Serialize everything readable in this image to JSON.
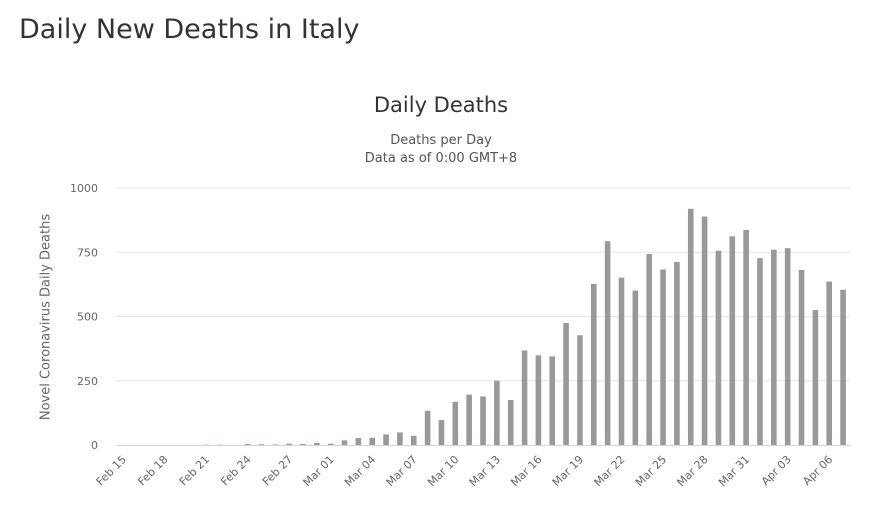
{
  "page": {
    "title": "Daily New Deaths in Italy"
  },
  "chart_data": {
    "type": "bar",
    "title": "Daily Deaths",
    "subtitle_lines": [
      "Deaths per Day",
      "Data as of 0:00 GMT+8"
    ],
    "xlabel": "",
    "ylabel": "Novel Coronavirus Daily Deaths",
    "ylim": [
      0,
      1000
    ],
    "yticks": [
      0,
      250,
      500,
      750,
      1000
    ],
    "grid": true,
    "legend": "none",
    "bar_color": "#999999",
    "categories": [
      "Feb 15",
      "Feb 16",
      "Feb 17",
      "Feb 18",
      "Feb 19",
      "Feb 20",
      "Feb 21",
      "Feb 22",
      "Feb 23",
      "Feb 24",
      "Feb 25",
      "Feb 26",
      "Feb 27",
      "Feb 28",
      "Feb 29",
      "Mar 01",
      "Mar 02",
      "Mar 03",
      "Mar 04",
      "Mar 05",
      "Mar 06",
      "Mar 07",
      "Mar 08",
      "Mar 09",
      "Mar 10",
      "Mar 11",
      "Mar 12",
      "Mar 13",
      "Mar 14",
      "Mar 15",
      "Mar 16",
      "Mar 17",
      "Mar 18",
      "Mar 19",
      "Mar 20",
      "Mar 21",
      "Mar 22",
      "Mar 23",
      "Mar 24",
      "Mar 25",
      "Mar 26",
      "Mar 27",
      "Mar 28",
      "Mar 29",
      "Mar 30",
      "Mar 31",
      "Apr 01",
      "Apr 02",
      "Apr 03",
      "Apr 04",
      "Apr 05",
      "Apr 06",
      "Apr 07"
    ],
    "xtick_labels": [
      "Feb 15",
      "Feb 18",
      "Feb 21",
      "Feb 24",
      "Feb 27",
      "Mar 01",
      "Mar 04",
      "Mar 07",
      "Mar 10",
      "Mar 13",
      "Mar 16",
      "Mar 19",
      "Mar 22",
      "Mar 25",
      "Mar 28",
      "Mar 31",
      "Apr 03",
      "Apr 06"
    ],
    "series": [
      {
        "values": [
          0,
          0,
          0,
          0,
          0,
          0,
          1,
          1,
          0,
          4,
          3,
          2,
          5,
          4,
          8,
          5,
          18,
          27,
          28,
          41,
          49,
          36,
          133,
          97,
          168,
          196,
          189,
          250,
          175,
          368,
          349,
          345,
          475,
          427,
          627,
          793,
          651,
          601,
          743,
          683,
          712,
          919,
          889,
          756,
          812,
          837,
          727,
          760,
          766,
          681,
          525,
          636,
          604
        ]
      }
    ]
  }
}
